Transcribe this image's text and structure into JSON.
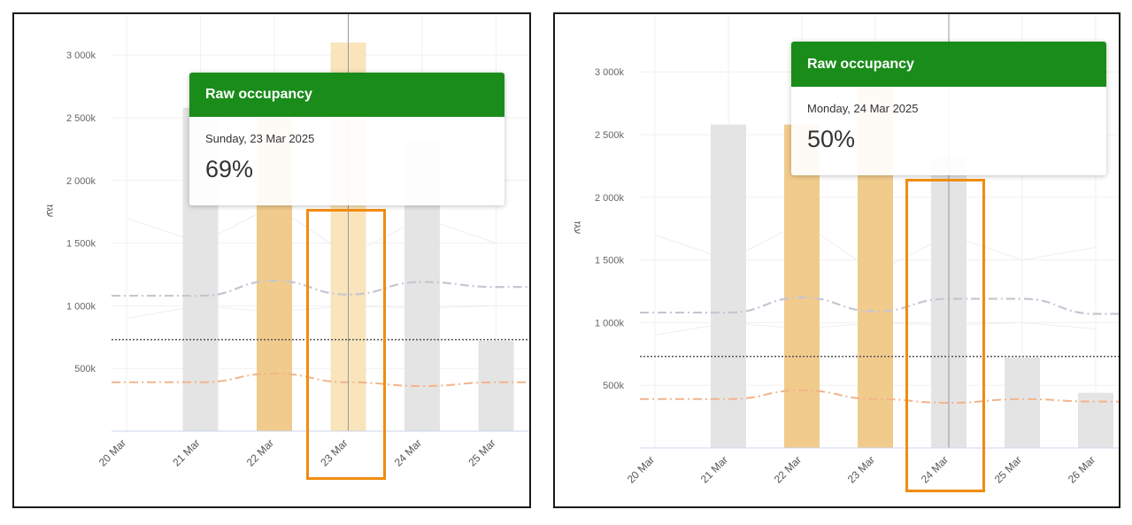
{
  "colors": {
    "header": "#1a8c1a",
    "bar_default": "#e4e4e4",
    "bar_accent": "#f1cb8c",
    "bar_hover": "#f9e4bc",
    "highlight": "#f08c10",
    "line_grey": "#c6c6d2",
    "line_orange": "#f2b48c",
    "line_dotted": "#555555"
  },
  "panels": [
    {
      "tooltip": {
        "title": "Raw occupancy",
        "date": "Sunday, 23 Mar 2025",
        "value": "69%"
      },
      "y_unit": "עגז",
      "y_ticks": [
        "500k",
        "1 000k",
        "1 500k",
        "2 000k",
        "2 500k",
        "3 000k"
      ],
      "x_ticks": [
        "20 Mar",
        "21 Mar",
        "22 Mar",
        "23 Mar",
        "24 Mar",
        "25 Mar"
      ]
    },
    {
      "tooltip": {
        "title": "Raw occupancy",
        "date": "Monday, 24 Mar 2025",
        "value": "50%"
      },
      "y_unit": "עגז",
      "y_ticks": [
        "500k",
        "1 000k",
        "1 500k",
        "2 000k",
        "2 500k",
        "3 000k"
      ],
      "x_ticks": [
        "20 Mar",
        "21 Mar",
        "22 Mar",
        "23 Mar",
        "24 Mar",
        "25 Mar",
        "26 Mar"
      ]
    }
  ],
  "chart_data": [
    {
      "type": "bar",
      "categories": [
        "20 Mar",
        "21 Mar",
        "22 Mar",
        "23 Mar",
        "24 Mar",
        "25 Mar"
      ],
      "series": [
        {
          "values": [
            null,
            2580000,
            2570000,
            3100000,
            2320000,
            720000
          ]
        },
        {
          "values": [
            null,
            1080000,
            1200000,
            1090000,
            1190000,
            1150000
          ]
        },
        {
          "values": [
            null,
            390000,
            460000,
            390000,
            360000,
            390000
          ]
        },
        {
          "values": [
            730000,
            730000,
            730000,
            730000,
            730000,
            730000
          ]
        }
      ],
      "accent_categories": [
        "22 Mar",
        "23 Mar"
      ],
      "hover_category": "23 Mar",
      "highlighted_category": "23 Mar",
      "ylabel": "עגז",
      "ylim": [
        0,
        3200000
      ]
    },
    {
      "type": "bar",
      "categories": [
        "20 Mar",
        "21 Mar",
        "22 Mar",
        "23 Mar",
        "24 Mar",
        "25 Mar",
        "26 Mar"
      ],
      "series": [
        {
          "values": [
            null,
            2580000,
            2580000,
            3060000,
            2320000,
            720000,
            440000
          ]
        },
        {
          "values": [
            null,
            1080000,
            1200000,
            1090000,
            1190000,
            1190000,
            1070000
          ]
        },
        {
          "values": [
            null,
            390000,
            460000,
            390000,
            360000,
            390000,
            370000
          ]
        },
        {
          "values": [
            730000,
            730000,
            730000,
            730000,
            730000,
            730000,
            730000
          ]
        }
      ],
      "accent_categories": [
        "22 Mar",
        "23 Mar"
      ],
      "hover_category": "24 Mar",
      "highlighted_category": "24 Mar",
      "ylabel": "עגז",
      "ylim": [
        0,
        3200000
      ]
    }
  ]
}
